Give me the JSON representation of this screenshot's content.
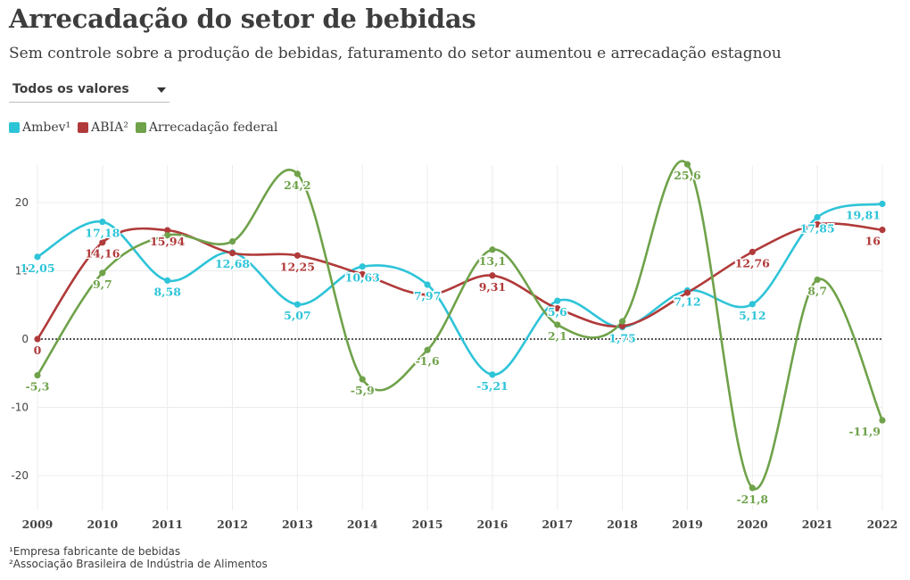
{
  "header": {
    "title": "Arrecadação do setor de bebidas",
    "subtitle": "Sem controle sobre a produção de bebidas, faturamento do setor aumentou e arrecadação estagnou"
  },
  "dropdown": {
    "selected": "Todos os valores"
  },
  "legend": [
    {
      "label": "Ambev¹",
      "color": "#2ec4d8"
    },
    {
      "label": "ABIA²",
      "color": "#b03a3a"
    },
    {
      "label": "Arrecadação federal",
      "color": "#6fa24a"
    }
  ],
  "footnotes": {
    "note1": "¹Empresa fabricante de bebidas",
    "note2": "²Associação Brasileira de Indústria de Alimentos"
  },
  "chart_data": {
    "type": "line",
    "x": [
      "2009",
      "2010",
      "2011",
      "2012",
      "2013",
      "2014",
      "2015",
      "2016",
      "2017",
      "2018",
      "2019",
      "2020",
      "2021",
      "2022"
    ],
    "y_ticks": [
      20,
      10,
      0,
      -10,
      -20
    ],
    "ylim": [
      -25.5,
      25.5
    ],
    "grid": true,
    "zero_line": "dotted",
    "series": [
      {
        "name": "Ambev¹",
        "color": "#2ec4d8",
        "values": [
          12.05,
          17.18,
          8.58,
          12.68,
          5.07,
          10.63,
          7.97,
          -5.21,
          5.6,
          1.75,
          7.12,
          5.12,
          17.85,
          19.81
        ],
        "labels": [
          "12,05",
          "17,18",
          "8,58",
          "12,68",
          "5,07",
          "10,63",
          "7,97",
          "-5,21",
          "5,6",
          "1,75",
          "7,12",
          "5,12",
          "17,85",
          "19,81"
        ]
      },
      {
        "name": "ABIA²",
        "color": "#b03a3a",
        "values": [
          0,
          14.16,
          15.94,
          12.6,
          12.25,
          9.5,
          6.5,
          9.31,
          4.5,
          1.9,
          6.8,
          12.76,
          16.8,
          16
        ],
        "labels": [
          "0",
          "14,16",
          "15,94",
          "",
          "12,25",
          "",
          "",
          "9,31",
          "",
          "",
          "",
          "12,76",
          "",
          "16"
        ]
      },
      {
        "name": "Arrecadação federal",
        "color": "#6fa24a",
        "values": [
          -5.3,
          9.7,
          15.2,
          14.3,
          24.2,
          -5.9,
          -1.6,
          13.1,
          2.1,
          2.6,
          25.6,
          -21.8,
          8.7,
          -11.9
        ],
        "labels": [
          "-5,3",
          "9,7",
          "",
          "",
          "24,2",
          "-5,9",
          "-1,6",
          "13,1",
          "2,1",
          "",
          "25,6",
          "-21,8",
          "8,7",
          "-11,9"
        ]
      }
    ]
  }
}
